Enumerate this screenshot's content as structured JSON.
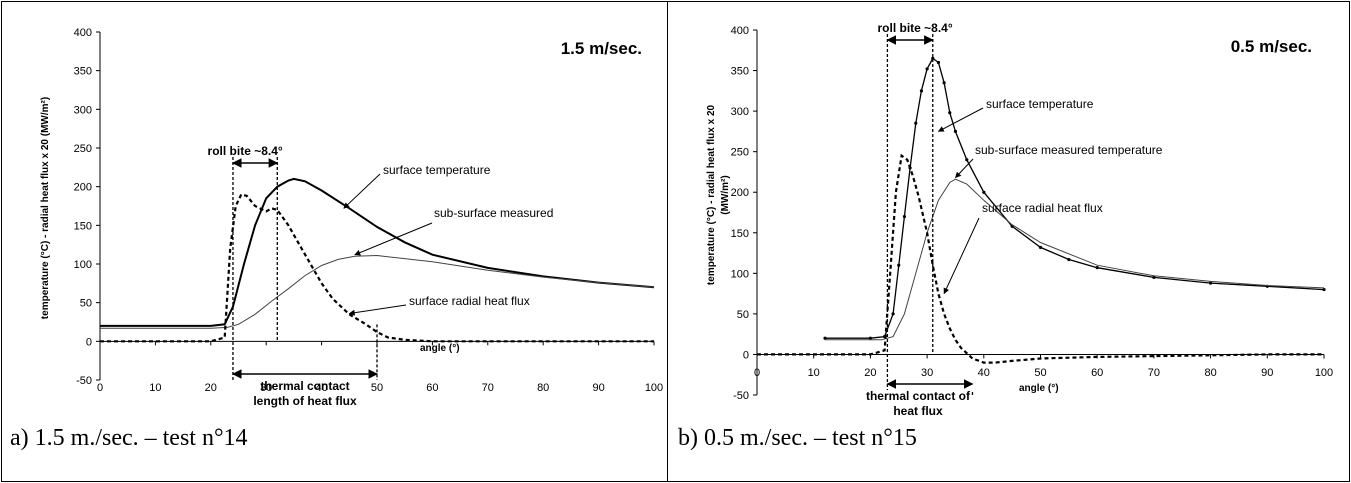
{
  "chart_data": [
    {
      "type": "line",
      "caption": "a) 1.5 m./sec. – test n°14",
      "speed_label": "1.5 m/sec.",
      "ylabel": "temperature (°C) - radial heat flux x 20 (MW/m²)",
      "xlabel": "angle (°)",
      "xlim": [
        0,
        100
      ],
      "ylim": [
        -50,
        400
      ],
      "x_ticks": [
        0,
        10,
        20,
        30,
        40,
        50,
        60,
        70,
        80,
        90,
        100
      ],
      "y_ticks": [
        -50,
        0,
        50,
        100,
        150,
        200,
        250,
        300,
        350,
        400
      ],
      "grid": false,
      "series": [
        {
          "name": "surface temperature",
          "style": "solid-bold",
          "x": [
            0,
            10,
            20,
            22.5,
            24,
            26,
            28,
            30,
            32,
            34,
            35,
            37,
            40,
            45,
            50,
            55,
            60,
            70,
            80,
            90,
            100
          ],
          "y": [
            20,
            20,
            20,
            22,
            45,
            100,
            150,
            185,
            200,
            208,
            210,
            207,
            195,
            172,
            148,
            128,
            112,
            95,
            84,
            76,
            70
          ]
        },
        {
          "name": "sub-surface measured",
          "style": "solid-thin",
          "x": [
            0,
            20,
            23,
            25,
            28,
            31,
            34,
            37,
            40,
            43,
            46,
            50,
            60,
            70,
            80,
            90,
            100
          ],
          "y": [
            17,
            17,
            18,
            22,
            35,
            52,
            68,
            85,
            98,
            106,
            110,
            111,
            103,
            92,
            83,
            76,
            70
          ]
        },
        {
          "name": "surface radial heat flux",
          "style": "dashed-bold",
          "x": [
            0,
            10,
            20,
            22.5,
            23.5,
            24.5,
            25.5,
            26.5,
            28,
            30,
            31,
            32,
            34,
            36,
            38,
            40,
            42,
            45,
            48,
            50,
            52,
            55,
            60,
            70,
            80,
            90,
            100
          ],
          "y": [
            0,
            0,
            0,
            5,
            120,
            175,
            190,
            188,
            175,
            168,
            172,
            170,
            150,
            125,
            100,
            75,
            55,
            35,
            22,
            12,
            5,
            2,
            0,
            0,
            0,
            0,
            0
          ]
        }
      ],
      "annotations": {
        "roll_bite": "roll bite ~8.4°",
        "thermal_contact_1": "thermal contact",
        "thermal_contact_2": "length of heat flux",
        "roll_bite_x": [
          24,
          32
        ],
        "thermal_contact_x": [
          24,
          50
        ]
      }
    },
    {
      "type": "line",
      "caption": "b) 0.5 m./sec. – test n°15",
      "speed_label": "0.5 m/sec.",
      "ylabel_1": "temperature (°C) - radial heat flux x 20",
      "ylabel_2": "(MW/m²)",
      "xlabel": "angle (°)",
      "xlim": [
        0,
        100
      ],
      "ylim": [
        -50,
        400
      ],
      "x_ticks": [
        0,
        10,
        20,
        30,
        40,
        50,
        60,
        70,
        80,
        90,
        100
      ],
      "y_ticks": [
        -50,
        0,
        50,
        100,
        150,
        200,
        250,
        300,
        350,
        400
      ],
      "grid": false,
      "series": [
        {
          "name": "surface temperature",
          "style": "dotted-markers",
          "x": [
            12,
            20,
            22.5,
            24,
            25,
            26,
            27,
            28,
            29,
            30,
            31,
            32,
            33,
            34,
            35,
            37,
            40,
            45,
            50,
            55,
            60,
            70,
            80,
            90,
            100
          ],
          "y": [
            20,
            20,
            22,
            50,
            110,
            170,
            230,
            285,
            325,
            352,
            365,
            360,
            335,
            298,
            275,
            240,
            200,
            158,
            132,
            117,
            107,
            95,
            88,
            84,
            80
          ]
        },
        {
          "name": "sub-surface measured temperature",
          "style": "solid-thin",
          "x": [
            12,
            22,
            24,
            26,
            28,
            30,
            32,
            34,
            35,
            37,
            40,
            45,
            50,
            60,
            70,
            80,
            90,
            100
          ],
          "y": [
            18,
            18,
            22,
            50,
            100,
            150,
            190,
            212,
            216,
            210,
            190,
            160,
            138,
            110,
            97,
            90,
            85,
            82
          ]
        },
        {
          "name": "surface radial heat flux",
          "style": "dashed-bold",
          "x": [
            0,
            10,
            20,
            22.5,
            23.5,
            24.5,
            25.5,
            26.5,
            27.5,
            28.5,
            30,
            31,
            32,
            33,
            34,
            35,
            36,
            38,
            40,
            42,
            45,
            50,
            60,
            70,
            80,
            90,
            100
          ],
          "y": [
            0,
            0,
            0,
            5,
            100,
            200,
            245,
            240,
            220,
            195,
            150,
            110,
            75,
            50,
            32,
            18,
            8,
            -5,
            -10,
            -10,
            -8,
            -5,
            -3,
            -2,
            -1,
            0,
            0
          ]
        }
      ],
      "annotations": {
        "roll_bite": "roll bite ~8.4°",
        "thermal_contact_1": "thermal contact of",
        "thermal_contact_2": "heat flux",
        "roll_bite_x": [
          23,
          31
        ],
        "thermal_contact_x": [
          23,
          38
        ]
      }
    }
  ]
}
